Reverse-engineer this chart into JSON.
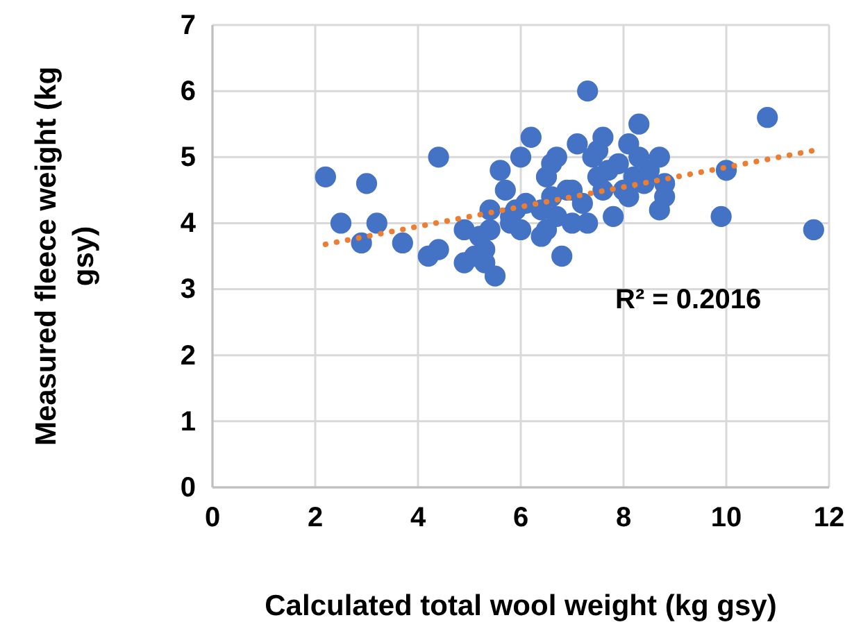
{
  "chart_data": {
    "type": "scatter",
    "xlabel": "Calculated total wool weight (kg gsy)",
    "ylabel": "Measured fleece weight (kg gsy)",
    "xlim": [
      0,
      12
    ],
    "xticks": [
      0,
      2,
      4,
      6,
      8,
      10,
      12
    ],
    "ylim": [
      0,
      7
    ],
    "yticks": [
      0,
      1,
      2,
      3,
      4,
      5,
      6,
      7
    ],
    "grid": true,
    "marker": "circle",
    "annotations": [
      "R² = 0.2016"
    ],
    "series": [
      {
        "type": "scatter",
        "color": "#4472c4",
        "x": [
          2.2,
          2.5,
          2.9,
          3.0,
          3.2,
          3.7,
          4.2,
          4.4,
          4.4,
          4.9,
          4.9,
          5.1,
          5.2,
          5.3,
          5.4,
          5.4,
          5.5,
          5.6,
          5.7,
          5.8,
          5.9,
          6.0,
          6.0,
          6.1,
          6.2,
          6.4,
          6.4,
          6.5,
          6.6,
          6.6,
          6.7,
          6.7,
          6.8,
          6.9,
          7.0,
          7.1,
          7.2,
          7.3,
          7.3,
          7.4,
          7.5,
          7.5,
          7.6,
          7.6,
          7.7,
          7.8,
          7.9,
          8.0,
          8.1,
          8.1,
          8.2,
          8.3,
          8.3,
          8.4,
          8.5,
          8.7,
          8.7,
          8.8,
          8.8,
          9.9,
          10.0,
          10.8,
          11.7,
          5.3,
          7.0,
          6.5,
          5.8
        ],
        "values": [
          4.7,
          4.0,
          3.7,
          4.6,
          4.0,
          3.7,
          3.5,
          3.6,
          5.0,
          3.4,
          3.9,
          3.5,
          3.8,
          3.6,
          4.2,
          3.9,
          3.2,
          4.8,
          4.5,
          4.0,
          4.2,
          5.0,
          3.9,
          4.3,
          5.3,
          3.8,
          4.2,
          4.7,
          4.9,
          4.4,
          5.0,
          4.1,
          3.5,
          4.5,
          4.0,
          5.2,
          4.3,
          6.0,
          4.0,
          5.0,
          4.7,
          5.1,
          5.3,
          4.5,
          4.8,
          4.1,
          4.9,
          4.5,
          5.2,
          4.4,
          4.7,
          5.5,
          5.0,
          4.6,
          4.8,
          5.0,
          4.2,
          4.4,
          4.6,
          4.1,
          4.8,
          5.6,
          3.9,
          3.4,
          4.5,
          3.9,
          4.1
        ]
      },
      {
        "type": "line",
        "color": "#ed7d31",
        "line_style": "dotted",
        "marker": "none",
        "x": [
          2.2,
          11.7
        ],
        "values": [
          3.68,
          5.1
        ]
      }
    ]
  }
}
